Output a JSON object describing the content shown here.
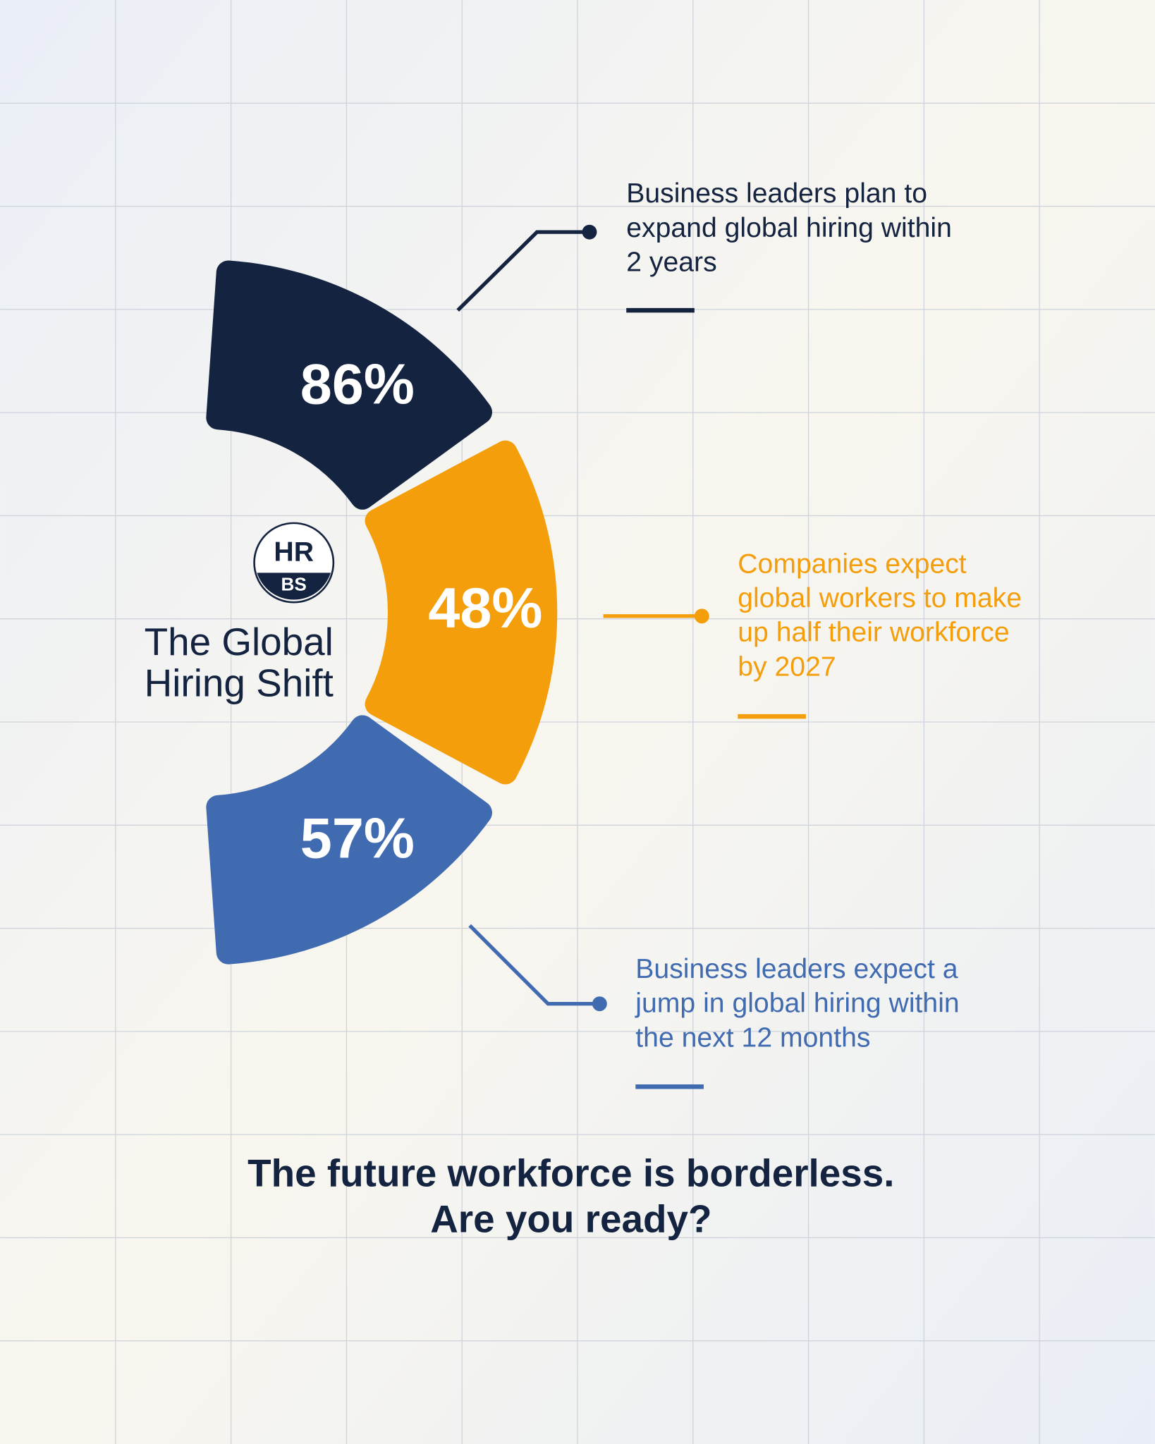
{
  "logo": {
    "top": "HR",
    "bottom": "BS"
  },
  "title_lines": [
    "The Global",
    "Hiring Shift"
  ],
  "stats": [
    {
      "value": "86%",
      "color": "#14233f",
      "lines": [
        "Business leaders plan to",
        "expand global hiring within",
        "2 years"
      ]
    },
    {
      "value": "48%",
      "color": "#f59e0b",
      "lines": [
        "Companies expect",
        "global workers to make",
        "up half their workforce",
        "by 2027"
      ]
    },
    {
      "value": "57%",
      "color": "#416bb0",
      "lines": [
        "Business leaders expect a",
        "jump in global hiring within",
        "the next 12 months"
      ]
    }
  ],
  "footer_lines": [
    "The future workforce is borderless.",
    "Are you ready?"
  ]
}
